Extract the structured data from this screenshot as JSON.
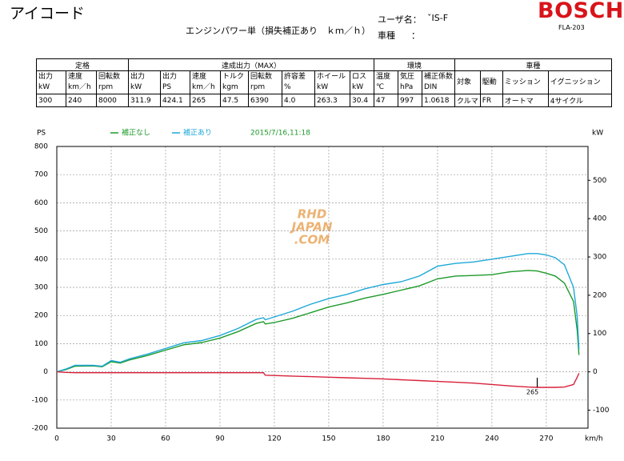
{
  "header": {
    "title": "アイコード",
    "subtitle": "エンジンパワー単（損失補正あり　ｋｍ／ｈ）",
    "user_label": "ユーザ名：",
    "user_value": "ˇIS-F",
    "model_label": "車種",
    "model_sep": "：",
    "brand": "BOSCH",
    "device": "FLA-203"
  },
  "table": {
    "groups": [
      {
        "label": "定格",
        "columns": [
          [
            "出力",
            "kW"
          ],
          [
            "速度",
            "km／h"
          ],
          [
            "回転数",
            "rpm"
          ]
        ],
        "values": [
          "300",
          "240",
          "8000"
        ]
      },
      {
        "label": "達成出力（MAX）",
        "columns": [
          [
            "出力",
            "kW"
          ],
          [
            "出力",
            "PS"
          ],
          [
            "速度",
            "km／h"
          ],
          [
            "トルク",
            "kgm"
          ],
          [
            "回転数",
            "rpm"
          ],
          [
            "許容差",
            "%"
          ],
          [
            "ホイール",
            "kW"
          ],
          [
            "ロス",
            "kW"
          ]
        ],
        "values": [
          "311.9",
          "424.1",
          "265",
          "47.5",
          "6390",
          "4.0",
          "263.3",
          "30.4"
        ]
      },
      {
        "label": "環境",
        "columns": [
          [
            "温度",
            "℃"
          ],
          [
            "気圧",
            "hPa"
          ],
          [
            "補正係数",
            "DIN"
          ]
        ],
        "values": [
          "47",
          "997",
          "1.0618"
        ]
      },
      {
        "label": "車種",
        "columns": [
          [
            "対象"
          ],
          [
            "駆動"
          ],
          [
            "ミッション"
          ],
          [
            "イグニッション"
          ]
        ],
        "values": [
          "クルマ",
          "FR",
          "オートマ",
          "4サイクル"
        ]
      }
    ]
  },
  "watermark": [
    "RHD",
    "JAPAN",
    ".COM"
  ],
  "chart_data": {
    "type": "line",
    "y_label": "PS",
    "y2_label": "kW",
    "x_label": "km/h",
    "date": "2015/7/16,11:18",
    "x": [
      0,
      5,
      10,
      20,
      25,
      30,
      35,
      40,
      50,
      60,
      70,
      80,
      90,
      100,
      110,
      114,
      115,
      120,
      130,
      140,
      150,
      160,
      170,
      180,
      190,
      200,
      210,
      220,
      230,
      240,
      250,
      260,
      265,
      270,
      275,
      280,
      285,
      287,
      288
    ],
    "series": [
      {
        "name": "補正なし",
        "color": "#1e9a2a",
        "values": [
          0,
          8,
          20,
          21,
          18,
          36,
          31,
          42,
          58,
          77,
          96,
          104,
          120,
          143,
          172,
          178,
          170,
          175,
          190,
          210,
          230,
          245,
          262,
          275,
          290,
          305,
          330,
          340,
          342,
          345,
          355,
          360,
          358,
          350,
          340,
          315,
          250,
          150,
          60
        ]
      },
      {
        "name": "補正あり",
        "color": "#1ea8d8",
        "values": [
          0,
          10,
          23,
          23,
          20,
          40,
          34,
          46,
          63,
          83,
          103,
          111,
          129,
          154,
          186,
          192,
          185,
          195,
          215,
          240,
          260,
          275,
          295,
          310,
          320,
          340,
          375,
          385,
          390,
          400,
          410,
          420,
          420,
          415,
          405,
          380,
          300,
          200,
          80
        ]
      },
      {
        "color": "#d8203a",
        "values": [
          0,
          -2,
          -3,
          -3,
          -3,
          -3,
          -3,
          -3,
          -3,
          -3,
          -3,
          -3,
          -3,
          -3,
          -3,
          -3,
          -12,
          -13,
          -15,
          -17,
          -19,
          -21,
          -23,
          -25,
          -28,
          -31,
          -34,
          -37,
          -40,
          -45,
          -50,
          -54,
          -55,
          -55,
          -55,
          -54,
          -45,
          -20,
          -5
        ]
      }
    ],
    "annotation": {
      "x": 265,
      "y": -55,
      "label": "265"
    },
    "xlim": [
      0,
      293
    ],
    "xticks": [
      0,
      30,
      60,
      90,
      120,
      150,
      180,
      210,
      240,
      270
    ],
    "ylim": [
      -200,
      800
    ],
    "yticks": [
      -200,
      -100,
      0,
      100,
      200,
      300,
      400,
      500,
      600,
      700,
      800
    ],
    "y2lim": [
      -147.1,
      588.4
    ],
    "y2ticks": [
      -100,
      0,
      100,
      200,
      300,
      400,
      500
    ],
    "grid": true
  }
}
